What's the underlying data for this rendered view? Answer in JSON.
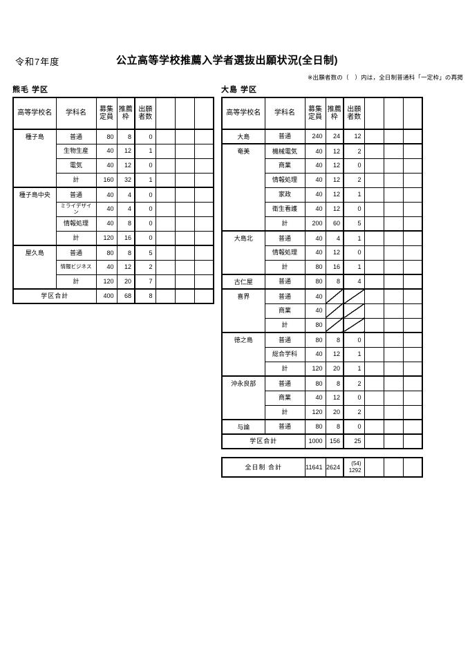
{
  "page": {
    "era": "令和7年度",
    "title": "公立高等学校推薦入学者選抜出願状況(全日制)",
    "note": "※出願者数の（　）内は，全日制普通科「一定枠」の再掲"
  },
  "column_headers": [
    "高等学校名",
    "学科名",
    "募集\n定員",
    "推薦\n枠",
    "出願\n者数",
    "",
    "",
    ""
  ],
  "districts": [
    {
      "id": "kumage",
      "label": "熊毛 学区",
      "groups": [
        {
          "school": "種子島",
          "rows": [
            {
              "dept": "普通",
              "capacity": "80",
              "quota": "8",
              "applicants": "0"
            },
            {
              "dept": "生物生産",
              "capacity": "40",
              "quota": "12",
              "applicants": "1"
            },
            {
              "dept": "電気",
              "capacity": "40",
              "quota": "12",
              "applicants": "0"
            },
            {
              "dept": "計",
              "capacity": "160",
              "quota": "32",
              "applicants": "1"
            }
          ]
        },
        {
          "school": "種子島中央",
          "rows": [
            {
              "dept": "普通",
              "capacity": "40",
              "quota": "4",
              "applicants": "0"
            },
            {
              "dept": "ミライデザイン",
              "capacity": "40",
              "quota": "4",
              "applicants": "0"
            },
            {
              "dept": "情報処理",
              "capacity": "40",
              "quota": "8",
              "applicants": "0"
            },
            {
              "dept": "計",
              "capacity": "120",
              "quota": "16",
              "applicants": "0"
            }
          ]
        },
        {
          "school": "屋久島",
          "rows": [
            {
              "dept": "普通",
              "capacity": "80",
              "quota": "8",
              "applicants": "5"
            },
            {
              "dept": "情報ビジネス",
              "capacity": "40",
              "quota": "12",
              "applicants": "2"
            },
            {
              "dept": "計",
              "capacity": "120",
              "quota": "20",
              "applicants": "7"
            }
          ]
        }
      ],
      "total_label": "学区合計",
      "total": {
        "capacity": "400",
        "quota": "68",
        "applicants": "8"
      }
    },
    {
      "id": "oshima",
      "label": "大島 学区",
      "groups": [
        {
          "school": "大島",
          "rows": [
            {
              "dept": "普通",
              "capacity": "240",
              "quota": "24",
              "applicants": "12"
            }
          ]
        },
        {
          "school": "奄美",
          "rows": [
            {
              "dept": "機械電気",
              "capacity": "40",
              "quota": "12",
              "applicants": "2"
            },
            {
              "dept": "商業",
              "capacity": "40",
              "quota": "12",
              "applicants": "0"
            },
            {
              "dept": "情報処理",
              "capacity": "40",
              "quota": "12",
              "applicants": "2"
            },
            {
              "dept": "家政",
              "capacity": "40",
              "quota": "12",
              "applicants": "1"
            },
            {
              "dept": "衛生看護",
              "capacity": "40",
              "quota": "12",
              "applicants": "0"
            },
            {
              "dept": "計",
              "capacity": "200",
              "quota": "60",
              "applicants": "5"
            }
          ]
        },
        {
          "school": "大島北",
          "rows": [
            {
              "dept": "普通",
              "capacity": "40",
              "quota": "4",
              "applicants": "1"
            },
            {
              "dept": "情報処理",
              "capacity": "40",
              "quota": "12",
              "applicants": "0"
            },
            {
              "dept": "計",
              "capacity": "80",
              "quota": "16",
              "applicants": "1"
            }
          ]
        },
        {
          "school": "古仁屋",
          "rows": [
            {
              "dept": "普通",
              "capacity": "80",
              "quota": "8",
              "applicants": "4"
            }
          ]
        },
        {
          "school": "喜界",
          "rows": [
            {
              "dept": "普通",
              "capacity": "40",
              "quota": null,
              "applicants": null
            },
            {
              "dept": "商業",
              "capacity": "40",
              "quota": null,
              "applicants": null
            },
            {
              "dept": "計",
              "capacity": "80",
              "quota": null,
              "applicants": null
            }
          ]
        },
        {
          "school": "徳之島",
          "rows": [
            {
              "dept": "普通",
              "capacity": "80",
              "quota": "8",
              "applicants": "0"
            },
            {
              "dept": "総合学科",
              "capacity": "40",
              "quota": "12",
              "applicants": "1"
            },
            {
              "dept": "計",
              "capacity": "120",
              "quota": "20",
              "applicants": "1"
            }
          ]
        },
        {
          "school": "沖永良部",
          "rows": [
            {
              "dept": "普通",
              "capacity": "80",
              "quota": "8",
              "applicants": "2"
            },
            {
              "dept": "商業",
              "capacity": "40",
              "quota": "12",
              "applicants": "0"
            },
            {
              "dept": "計",
              "capacity": "120",
              "quota": "20",
              "applicants": "2"
            }
          ]
        },
        {
          "school": "与論",
          "rows": [
            {
              "dept": "普通",
              "capacity": "80",
              "quota": "8",
              "applicants": "0"
            }
          ]
        }
      ],
      "total_label": "学区合計",
      "total": {
        "capacity": "1000",
        "quota": "156",
        "applicants": "25"
      }
    }
  ],
  "grand_total": {
    "label": "全日制 合計",
    "capacity": "11641",
    "quota": "2624",
    "applicants": "(54)\n1292"
  }
}
